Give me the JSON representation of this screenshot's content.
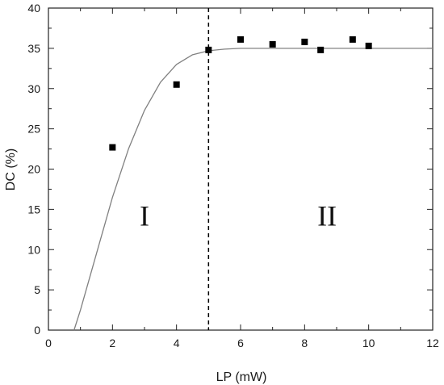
{
  "chart_data": {
    "type": "scatter",
    "xlabel": "LP (mW)",
    "ylabel": "DC (%)",
    "xlim": [
      0,
      12
    ],
    "ylim": [
      0,
      40
    ],
    "x_ticks": [
      0,
      2,
      4,
      6,
      8,
      10,
      12
    ],
    "y_ticks": [
      0,
      5,
      10,
      15,
      20,
      25,
      30,
      35,
      40
    ],
    "grid": false,
    "series": [
      {
        "x": [
          2,
          4,
          5,
          6,
          7,
          8,
          8.5,
          9.5,
          10
        ],
        "y": [
          22.7,
          30.5,
          34.8,
          36.1,
          35.5,
          35.8,
          34.8,
          36.1,
          35.3
        ],
        "marker": "square",
        "color": "#000000"
      }
    ],
    "fit_curve": {
      "x": [
        0.8,
        1,
        1.5,
        2,
        2.5,
        3,
        3.5,
        4,
        4.5,
        5,
        5.5,
        6,
        7,
        8,
        9,
        10,
        11,
        12
      ],
      "y": [
        0,
        2.5,
        9.5,
        16.5,
        22.5,
        27.3,
        30.8,
        33.0,
        34.2,
        34.7,
        34.9,
        35.0,
        35.0,
        35.0,
        35.0,
        35.0,
        35.0,
        35.0
      ],
      "color": "#808080"
    },
    "threshold_line": {
      "x": 5,
      "style": "dashed",
      "color": "#000000"
    },
    "annotations": [
      {
        "text": "I",
        "x": 3.0,
        "y": 13
      },
      {
        "text": "II",
        "x": 8.7,
        "y": 13
      }
    ]
  }
}
